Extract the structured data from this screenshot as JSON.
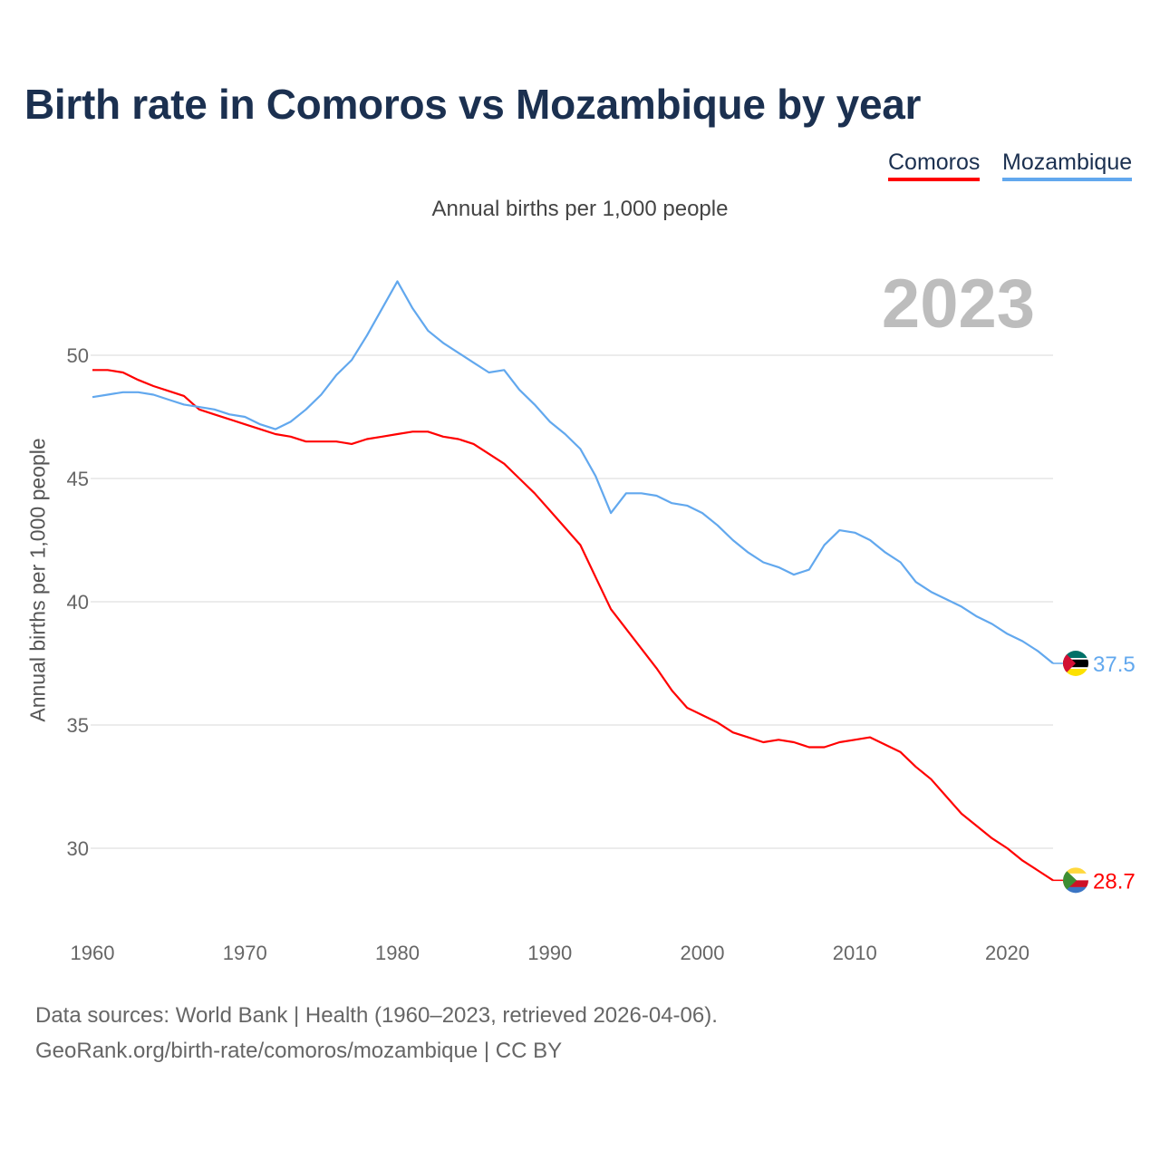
{
  "title": "Birth rate in Comoros vs Mozambique by year",
  "subtitle": "Annual births per 1,000 people",
  "year_mark": "2023",
  "footer": {
    "line1": "Data sources: World Bank | Health (1960–2023, retrieved 2026-04-06).",
    "line2": "GeoRank.org/birth-rate/comoros/mozambique | CC BY"
  },
  "chart_data": {
    "type": "line",
    "title": "Birth rate in Comoros vs Mozambique by year",
    "xlabel": "",
    "ylabel": "Annual births per 1,000 people",
    "xlim": [
      1960,
      2023
    ],
    "ylim": [
      26.5,
      54
    ],
    "grid": true,
    "legend_position": "top-right",
    "x_ticks": [
      1960,
      1970,
      1980,
      1990,
      2000,
      2010,
      2020
    ],
    "y_ticks": [
      30,
      35,
      40,
      45,
      50
    ],
    "x": [
      1960,
      1961,
      1962,
      1963,
      1964,
      1965,
      1966,
      1967,
      1968,
      1969,
      1970,
      1971,
      1972,
      1973,
      1974,
      1975,
      1976,
      1977,
      1978,
      1979,
      1980,
      1981,
      1982,
      1983,
      1984,
      1985,
      1986,
      1987,
      1988,
      1989,
      1990,
      1991,
      1992,
      1993,
      1994,
      1995,
      1996,
      1997,
      1998,
      1999,
      2000,
      2001,
      2002,
      2003,
      2004,
      2005,
      2006,
      2007,
      2008,
      2009,
      2010,
      2011,
      2012,
      2013,
      2014,
      2015,
      2016,
      2017,
      2018,
      2019,
      2020,
      2021,
      2022,
      2023
    ],
    "series": [
      {
        "name": "Comoros",
        "color": "#ff0000",
        "end_label": "28.7",
        "values": [
          49.4,
          49.4,
          49.3,
          49.0,
          48.75,
          48.55,
          48.35,
          47.8,
          47.6,
          47.4,
          47.2,
          47.0,
          46.8,
          46.7,
          46.5,
          46.5,
          46.5,
          46.4,
          46.6,
          46.7,
          46.8,
          46.9,
          46.9,
          46.7,
          46.6,
          46.4,
          46.0,
          45.6,
          45.0,
          44.4,
          43.7,
          43.0,
          42.3,
          41.0,
          39.7,
          38.9,
          38.1,
          37.3,
          36.4,
          35.7,
          35.4,
          35.1,
          34.7,
          34.5,
          34.3,
          34.4,
          34.3,
          34.1,
          34.1,
          34.3,
          34.4,
          34.5,
          34.2,
          33.9,
          33.3,
          32.8,
          32.1,
          31.4,
          30.9,
          30.4,
          30.0,
          29.5,
          29.1,
          28.7
        ]
      },
      {
        "name": "Mozambique",
        "color": "#62a8ee",
        "end_label": "37.5",
        "values": [
          48.3,
          48.4,
          48.5,
          48.5,
          48.4,
          48.2,
          48.0,
          47.9,
          47.8,
          47.6,
          47.5,
          47.2,
          47.0,
          47.3,
          47.8,
          48.4,
          49.2,
          49.8,
          50.8,
          51.9,
          53.0,
          51.9,
          51.0,
          50.5,
          50.1,
          49.7,
          49.3,
          49.4,
          48.6,
          48.0,
          47.3,
          46.8,
          46.2,
          45.1,
          43.6,
          44.4,
          44.4,
          44.3,
          44.0,
          43.9,
          43.6,
          43.1,
          42.5,
          42.0,
          41.6,
          41.4,
          41.1,
          41.3,
          42.3,
          42.9,
          42.8,
          42.5,
          42.0,
          41.6,
          40.8,
          40.4,
          40.1,
          39.8,
          39.4,
          39.1,
          38.7,
          38.4,
          38.0,
          37.5
        ]
      }
    ]
  }
}
